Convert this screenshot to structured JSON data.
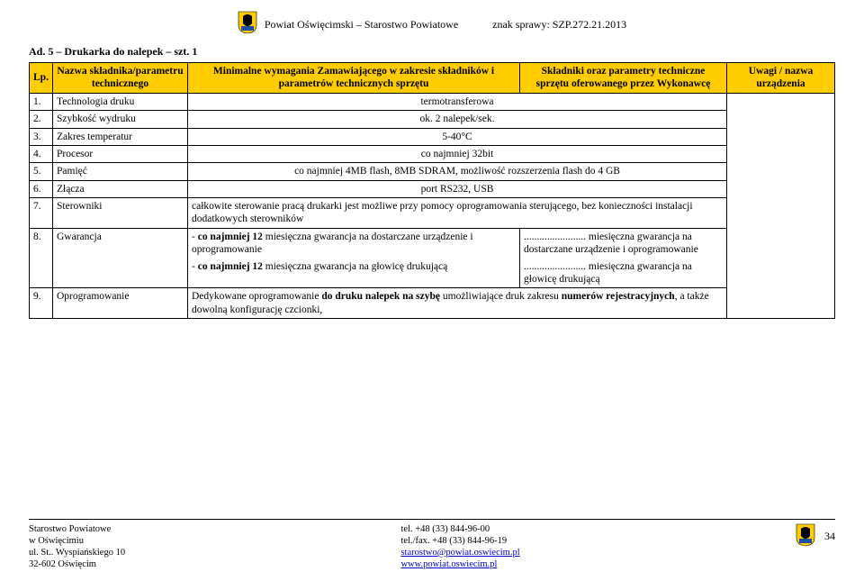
{
  "header": {
    "org": "Powiat Oświęcimski – Starostwo Powiatowe",
    "caseLabel": "znak sprawy: SZP.272.21.2013"
  },
  "section_title": "Ad. 5 – Drukarka do nalepek – szt. 1",
  "table": {
    "headers": {
      "lp": "Lp.",
      "param": "Nazwa składnika/parametru technicznego",
      "minreq": "Minimalne wymagania Zamawiającego w zakresie składników i parametrów technicznych sprzętu",
      "offered": "Składniki oraz parametry techniczne sprzętu oferowanego przez Wykonawcę",
      "remarks": "Uwagi / nazwa urządzenia"
    },
    "rows": [
      {
        "n": "1.",
        "param": "Technologia druku",
        "req": "termotransferowa"
      },
      {
        "n": "2.",
        "param": "Szybkość wydruku",
        "req": "ok. 2 nalepek/sek."
      },
      {
        "n": "3.",
        "param": "Zakres temperatur",
        "req": "5-40°C"
      },
      {
        "n": "4.",
        "param": "Procesor",
        "req": "co najmniej 32bit"
      },
      {
        "n": "5.",
        "param": "Pamięć",
        "req": "co najmniej 4MB flash, 8MB SDRAM, możliwość rozszerzenia flash do 4 GB"
      },
      {
        "n": "6.",
        "param": "Złącza",
        "req": "port RS232, USB"
      },
      {
        "n": "7.",
        "param": "Sterowniki",
        "req": "całkowite sterowanie pracą drukarki jest możliwe przy pomocy oprogramowania sterującego, bez konieczności instalacji dodatkowych sterowników"
      }
    ],
    "row8": {
      "n": "8.",
      "param": "Gwarancja",
      "req_a": "- co najmniej 12 miesięczna gwarancja na dostarczane urządzenie i oprogramowanie",
      "req_b": "- co najmniej  12 miesięczna gwarancja na głowicę drukującą",
      "off_a": "........................ miesięczna gwarancja na dostarczane urządzenie i oprogramowanie",
      "off_b": "........................ miesięczna gwarancja na głowicę drukującą"
    },
    "row9": {
      "n": "9.",
      "param": "Oprogramowanie",
      "req": "Dedykowane oprogramowanie do druku nalepek na szybę umożliwiające druk zakresu numerów rejestracyjnych, a także dowolną konfigurację czcionki,",
      "req_bold1": "do druku nalepek na szybę",
      "req_bold2": "numerów rejestracyjnych"
    }
  },
  "footer": {
    "left": {
      "l1": "Starostwo Powiatowe",
      "l2": "w Oświęcimiu",
      "l3": "ul. St.. Wyspiańskiego 10",
      "l4": "32-602 Oświęcim"
    },
    "center": {
      "l1": "tel. +48 (33) 844-96-00",
      "l2": "tel./fax. +48 (33) 844-96-19",
      "l3": "starostwo@powiat.oswiecim.pl",
      "l4": "www.powiat.oswiecim.pl"
    },
    "page": "34"
  },
  "colors": {
    "header_bg": "#ffcc00",
    "border": "#000000",
    "link": "#0000cc",
    "crest_yellow": "#ffcc00",
    "crest_blue": "#1e4fa3"
  }
}
